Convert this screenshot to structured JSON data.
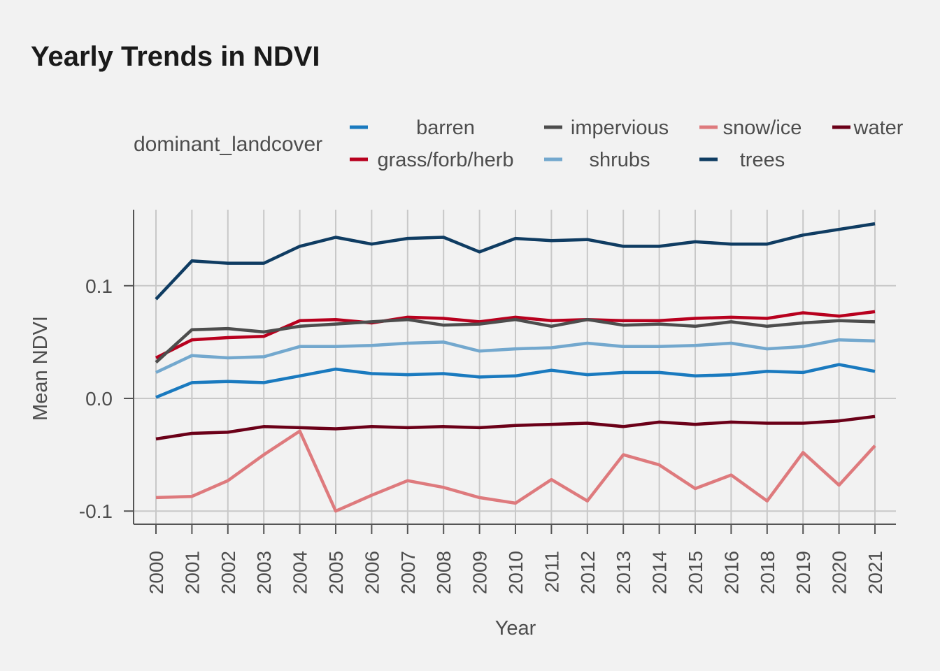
{
  "chart_data": {
    "type": "line",
    "title": "Yearly Trends in NDVI",
    "xlabel": "Year",
    "ylabel": "Mean NDVI",
    "categories": [
      "2000",
      "2001",
      "2002",
      "2003",
      "2004",
      "2005",
      "2006",
      "2007",
      "2008",
      "2009",
      "2010",
      "2011",
      "2012",
      "2013",
      "2014",
      "2015",
      "2016",
      "2018",
      "2019",
      "2020",
      "2021"
    ],
    "y_ticks": [
      -0.1,
      0.0,
      0.1
    ],
    "y_tick_labels": [
      "-0.1",
      "0.0",
      "0.1"
    ],
    "ylim": [
      -0.112,
      0.167
    ],
    "grid": true,
    "legend": {
      "title": "dominant_landcover",
      "placement": "top"
    },
    "series": [
      {
        "name": "barren",
        "color": "#1a7abf",
        "values": [
          0.001,
          0.014,
          0.015,
          0.014,
          0.02,
          0.026,
          0.022,
          0.021,
          0.022,
          0.019,
          0.02,
          0.025,
          0.021,
          0.023,
          0.023,
          0.02,
          0.021,
          0.024,
          0.023,
          0.03,
          0.024
        ]
      },
      {
        "name": "grass/forb/herb",
        "color": "#b8001e",
        "values": [
          0.036,
          0.052,
          0.054,
          0.055,
          0.069,
          0.07,
          0.067,
          0.072,
          0.071,
          0.068,
          0.072,
          0.069,
          0.07,
          0.069,
          0.069,
          0.071,
          0.072,
          0.071,
          0.076,
          0.073,
          0.077
        ]
      },
      {
        "name": "impervious",
        "color": "#4d4d4d",
        "values": [
          0.032,
          0.061,
          0.062,
          0.059,
          0.064,
          0.066,
          0.068,
          0.07,
          0.065,
          0.066,
          0.07,
          0.064,
          0.07,
          0.065,
          0.066,
          0.064,
          0.068,
          0.064,
          0.067,
          0.069,
          0.068
        ]
      },
      {
        "name": "shrubs",
        "color": "#73a8ce",
        "values": [
          0.023,
          0.038,
          0.036,
          0.037,
          0.046,
          0.046,
          0.047,
          0.049,
          0.05,
          0.042,
          0.044,
          0.045,
          0.049,
          0.046,
          0.046,
          0.047,
          0.049,
          0.044,
          0.046,
          0.052,
          0.051
        ]
      },
      {
        "name": "snow/ice",
        "color": "#de7a7d",
        "values": [
          -0.088,
          -0.087,
          -0.073,
          -0.05,
          -0.029,
          -0.1,
          -0.086,
          -0.073,
          -0.079,
          -0.088,
          -0.093,
          -0.072,
          -0.091,
          -0.05,
          -0.059,
          -0.08,
          -0.068,
          -0.091,
          -0.048,
          -0.077,
          -0.042
        ]
      },
      {
        "name": "trees",
        "color": "#0f3c62",
        "values": [
          0.088,
          0.122,
          0.12,
          0.12,
          0.135,
          0.143,
          0.137,
          0.142,
          0.143,
          0.13,
          0.142,
          0.14,
          0.141,
          0.135,
          0.135,
          0.139,
          0.137,
          0.137,
          0.145,
          0.15,
          0.155
        ]
      },
      {
        "name": "water",
        "color": "#6b0018",
        "values": [
          -0.036,
          -0.031,
          -0.03,
          -0.025,
          -0.026,
          -0.027,
          -0.025,
          -0.026,
          -0.025,
          -0.026,
          -0.024,
          -0.023,
          -0.022,
          -0.025,
          -0.021,
          -0.023,
          -0.021,
          -0.022,
          -0.022,
          -0.02,
          -0.016
        ]
      }
    ]
  }
}
